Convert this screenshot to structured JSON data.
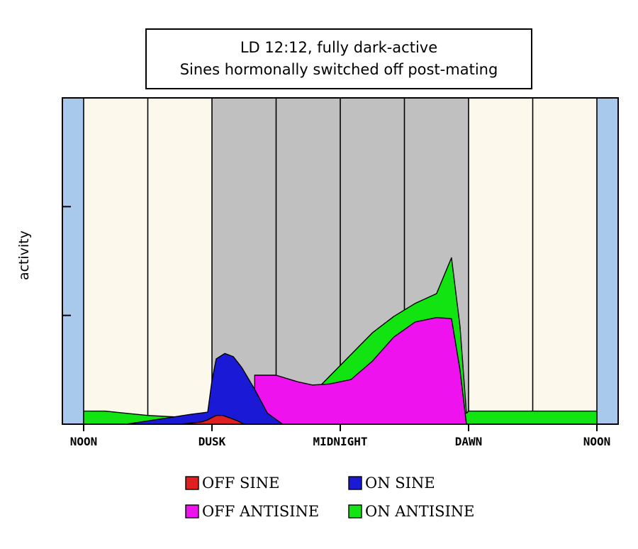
{
  "chart_data": {
    "type": "area",
    "title": "LD 12:12, fully dark-active",
    "subtitle": "Sines hormonally switched off post-mating",
    "ylabel": "activity",
    "xlabel": "",
    "x_ticks": [
      "NOON",
      "DUSK",
      "MIDNIGHT",
      "DAWN",
      "NOON"
    ],
    "x_range_hours": [
      12,
      36
    ],
    "ylim": [
      0,
      3
    ],
    "y_tick_values": [
      1,
      2
    ],
    "stacked": true,
    "dark_phase_hours": [
      18,
      30
    ],
    "series": [
      {
        "name": "OFF SINE",
        "color": "#e02020",
        "x": [
          16.5,
          17.5,
          17.8,
          18.0,
          18.2,
          18.5,
          18.8,
          19.2,
          19.5
        ],
        "y": [
          0.0,
          0.02,
          0.04,
          0.06,
          0.08,
          0.08,
          0.06,
          0.03,
          0.0
        ]
      },
      {
        "name": "ON SINE",
        "color": "#1a1ad6",
        "x": [
          14.0,
          15.0,
          16.0,
          17.0,
          17.8,
          18.0,
          18.2,
          18.6,
          19.0,
          19.4,
          20.0,
          20.6,
          21.3,
          21.6
        ],
        "y": [
          0.0,
          0.03,
          0.06,
          0.09,
          0.11,
          0.4,
          0.6,
          0.65,
          0.62,
          0.52,
          0.32,
          0.1,
          0.0,
          0.0
        ]
      },
      {
        "name": "OFF ANTISINE",
        "color": "#ee12ee",
        "x": [
          20.0,
          21.0,
          22.0,
          22.7,
          23.5,
          24.5,
          25.5,
          26.5,
          27.5,
          28.5,
          29.2,
          29.6,
          29.9
        ],
        "y": [
          0.45,
          0.45,
          0.39,
          0.36,
          0.37,
          0.41,
          0.58,
          0.8,
          0.94,
          0.98,
          0.97,
          0.5,
          0.0
        ]
      },
      {
        "name": "ON ANTISINE",
        "color": "#12e412",
        "x": [
          12.0,
          13.0,
          14.0,
          15.0,
          16.0,
          17.0,
          18.0,
          20.0,
          21.0,
          22.0,
          22.7,
          23.5,
          24.5,
          25.5,
          26.5,
          27.5,
          28.5,
          29.2,
          29.6,
          29.9,
          30.0,
          36.0
        ],
        "y": [
          0.12,
          0.12,
          0.1,
          0.08,
          0.07,
          0.06,
          0.0,
          0.0,
          0.0,
          0.14,
          0.28,
          0.44,
          0.64,
          0.84,
          0.99,
          1.11,
          1.2,
          1.53,
          0.9,
          0.1,
          0.12,
          0.12
        ]
      }
    ],
    "legend": [
      {
        "label": "OFF SINE",
        "color": "#e02020"
      },
      {
        "label": "ON SINE",
        "color": "#1a1ad6"
      },
      {
        "label": "OFF ANTISINE",
        "color": "#ee12ee"
      },
      {
        "label": "ON ANTISINE",
        "color": "#12e412"
      }
    ],
    "background_colors": {
      "light": "#fdf8ec",
      "dark": "#c0c0c0",
      "edge": "#a8c8ec"
    }
  }
}
